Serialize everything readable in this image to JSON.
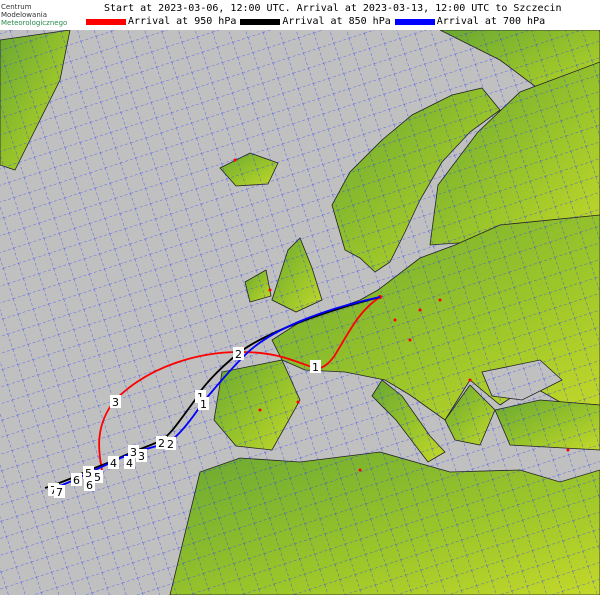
{
  "logo": {
    "line1": "Centrum",
    "line2": "Modelowania",
    "line3": "Meteorologicznego"
  },
  "title": "Start at 2023-03-06, 12:00 UTC. Arrival at 2023-03-13, 12:00 UTC to Szczecin",
  "legend": [
    {
      "label": "Arrival at 950 hPa",
      "color": "#ff0000"
    },
    {
      "label": "Arrival at 850 hPa",
      "color": "#000000"
    },
    {
      "label": "Arrival at 700 hPa",
      "color": "#0000ff"
    }
  ],
  "colors": {
    "sea": "#c0c0c0",
    "land": "#8fbf2a",
    "grid": "#0000ff",
    "city": "#ff0000"
  },
  "trajectories": [
    {
      "level": "950 hPa",
      "markers": [
        "1",
        "2",
        "3"
      ]
    },
    {
      "level": "850 hPa",
      "markers": [
        "1",
        "2",
        "3",
        "4",
        "5",
        "6",
        "7"
      ]
    },
    {
      "level": "700 hPa",
      "markers": [
        "1",
        "2",
        "3",
        "4",
        "5",
        "6",
        "7"
      ]
    }
  ]
}
